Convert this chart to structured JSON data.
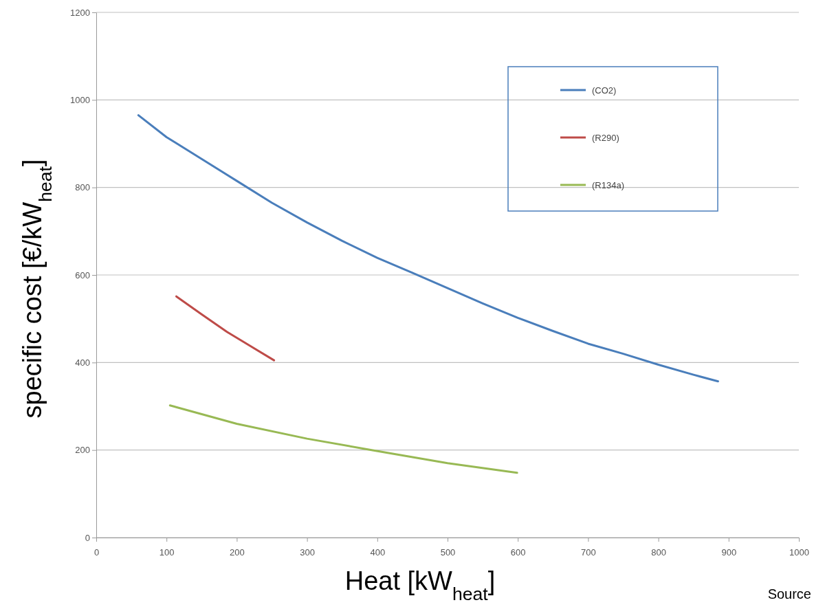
{
  "chart_data": {
    "type": "line",
    "xlabel": "Heat [kW$_{heat}$]",
    "ylabel": "specific cost [€/kW$_{heat}$]",
    "annotations": [
      "Source"
    ],
    "xlim": [
      0,
      1000
    ],
    "xticks": [
      0,
      100,
      200,
      300,
      400,
      500,
      600,
      700,
      800,
      900,
      1000
    ],
    "ylim": [
      0,
      1200
    ],
    "yticks": [
      0,
      200,
      400,
      600,
      800,
      1000,
      1200
    ],
    "grid": "y",
    "legend": "top right",
    "marker": "none",
    "line_style": "solid",
    "series": [
      {
        "name": "(CO2)",
        "color": "#4a7ebb",
        "x": [
          60,
          100,
          150,
          200,
          250,
          300,
          350,
          400,
          450,
          500,
          550,
          600,
          650,
          700,
          750,
          800,
          850,
          885
        ],
        "values": [
          965,
          915,
          865,
          815,
          765,
          720,
          678,
          639,
          605,
          570,
          535,
          502,
          472,
          443,
          420,
          395,
          372,
          357
        ]
      },
      {
        "name": "(R290)",
        "color": "#be4b48",
        "x": [
          114,
          150,
          186,
          220,
          253
        ],
        "values": [
          551,
          510,
          470,
          437,
          405
        ]
      },
      {
        "name": "(R134a)",
        "color": "#98b954",
        "x": [
          105,
          200,
          300,
          392,
          500,
          599
        ],
        "values": [
          302,
          260,
          226,
          200,
          170,
          148
        ]
      }
    ]
  }
}
